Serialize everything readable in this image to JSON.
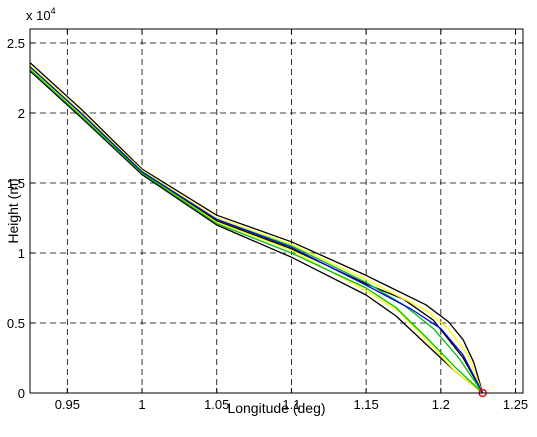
{
  "chart_data": {
    "type": "line",
    "xlabel": "Longitude (deg)",
    "ylabel": "Height (m)",
    "y_exponent_label": "x 10",
    "y_exponent_power": "4",
    "xlim": [
      0.925,
      1.255
    ],
    "ylim": [
      0,
      26000
    ],
    "x_ticks": [
      0.95,
      1.0,
      1.05,
      1.1,
      1.15,
      1.2,
      1.25
    ],
    "x_tick_labels": [
      "0.95",
      "1",
      "1.05",
      "1.1",
      "1.15",
      "1.2",
      "1.25"
    ],
    "y_ticks": [
      0,
      5000,
      10000,
      15000,
      20000,
      25000
    ],
    "y_tick_labels": [
      "0",
      "0.5",
      "1",
      "1.5",
      "2",
      "2.5"
    ],
    "grid": true,
    "grid_style": "dashed",
    "series": [
      {
        "color": "#000000",
        "x": [
          0.925,
          0.96,
          1.0,
          1.05,
          1.1,
          1.15,
          1.19,
          1.205,
          1.215,
          1.222,
          1.228
        ],
        "y": [
          23600,
          20200,
          16000,
          12700,
          10800,
          8400,
          6300,
          5100,
          3800,
          2200,
          0
        ]
      },
      {
        "color": "#000000",
        "x": [
          0.925,
          0.96,
          1.0,
          1.05,
          1.1,
          1.15,
          1.175,
          1.195,
          1.215,
          1.228
        ],
        "y": [
          23300,
          19900,
          15800,
          12300,
          10300,
          7800,
          6700,
          5200,
          2500,
          0
        ]
      },
      {
        "color": "#000000",
        "x": [
          0.925,
          0.96,
          1.0,
          1.05,
          1.1,
          1.15,
          1.17,
          1.19,
          1.21,
          1.228
        ],
        "y": [
          23000,
          19600,
          15600,
          12000,
          9700,
          7000,
          5500,
          3500,
          1500,
          0
        ]
      },
      {
        "color": "#ffff00",
        "x": [
          0.925,
          0.96,
          1.0,
          1.05,
          1.1,
          1.15,
          1.19,
          1.205,
          1.218,
          1.228
        ],
        "y": [
          23400,
          20000,
          15900,
          12500,
          10600,
          8100,
          5900,
          4600,
          2700,
          0
        ]
      },
      {
        "color": "#ffff00",
        "x": [
          0.925,
          0.96,
          1.0,
          1.05,
          1.1,
          1.15,
          1.172,
          1.19,
          1.21,
          1.228
        ],
        "y": [
          23200,
          19800,
          15700,
          12200,
          10200,
          7300,
          5800,
          3800,
          1500,
          0
        ]
      },
      {
        "color": "#00c000",
        "x": [
          0.925,
          0.96,
          1.0,
          1.05,
          1.1,
          1.15,
          1.175,
          1.195,
          1.212,
          1.228
        ],
        "y": [
          23300,
          19900,
          15800,
          12400,
          10500,
          7900,
          6300,
          4600,
          2500,
          0
        ]
      },
      {
        "color": "#00c000",
        "x": [
          0.925,
          0.96,
          1.0,
          1.05,
          1.1,
          1.15,
          1.17,
          1.19,
          1.21,
          1.228
        ],
        "y": [
          23100,
          19700,
          15700,
          12100,
          10000,
          7500,
          6100,
          4000,
          1800,
          0
        ]
      },
      {
        "color": "#0000ff",
        "x": [
          0.925,
          0.96,
          1.0,
          1.05,
          1.1,
          1.15,
          1.18,
          1.2,
          1.215,
          1.228
        ],
        "y": [
          23300,
          19900,
          15800,
          12400,
          10400,
          7700,
          6000,
          4600,
          2700,
          0
        ]
      }
    ],
    "marker": {
      "x": 1.228,
      "y": 0,
      "color": "#ff0000"
    }
  }
}
